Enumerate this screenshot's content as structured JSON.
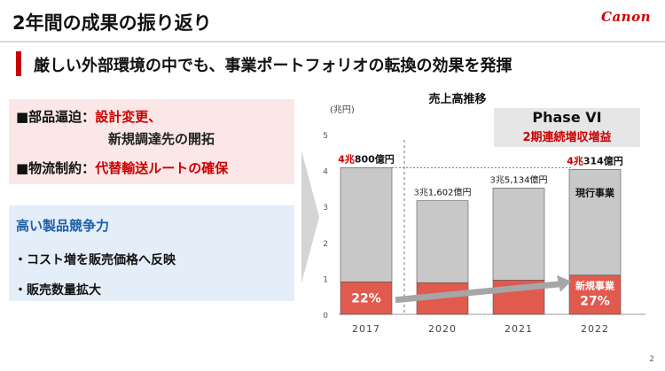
{
  "header": {
    "title": "2年間の成果の振り返り",
    "logo": "Canon",
    "page_number": "2"
  },
  "subtitle": "厳しい外部環境の中でも、事業ポートフォリオの転換の効果を発揮",
  "box_red": {
    "row1_key": "■部品逼迫：",
    "row1_val_a": "設計変更、",
    "row1_val_b": "新規調達先の開拓",
    "row2_key": "■物流制約：",
    "row2_val": "代替輸送ルートの確保"
  },
  "box_blue": {
    "heading": "高い製品競争力",
    "items": [
      "・コスト増を販売価格へ反映",
      "・販売数量拡大"
    ]
  },
  "phase": {
    "label": "Phase VI",
    "sub": "2期連続増収増益"
  },
  "colors": {
    "accent": "#cc0000",
    "gray_bar": "#c8c8c8",
    "red_bar": "#e05a4e",
    "blue_text": "#1f5fa8"
  },
  "chart_data": {
    "type": "bar",
    "title": "売上高推移",
    "unit_label": "(兆円)",
    "categories": [
      "2017",
      "2020",
      "2021",
      "2022"
    ],
    "ylim": [
      0,
      5
    ],
    "yticks": [
      "0",
      "1",
      "2",
      "3",
      "4",
      "5"
    ],
    "totals": [
      4.08,
      3.1602,
      3.5134,
      4.0314
    ],
    "new_business": [
      0.9,
      0.88,
      0.95,
      1.09
    ],
    "total_label_prefixes": [
      "4兆",
      "3兆",
      "3兆",
      "4兆"
    ],
    "total_label_values": [
      "800億円",
      "1,602億円",
      "5,134億円",
      "314億円"
    ],
    "share_labels": [
      "22%",
      "27%"
    ],
    "segment_labels": {
      "existing": "現行事業",
      "new": "新規事業"
    }
  }
}
